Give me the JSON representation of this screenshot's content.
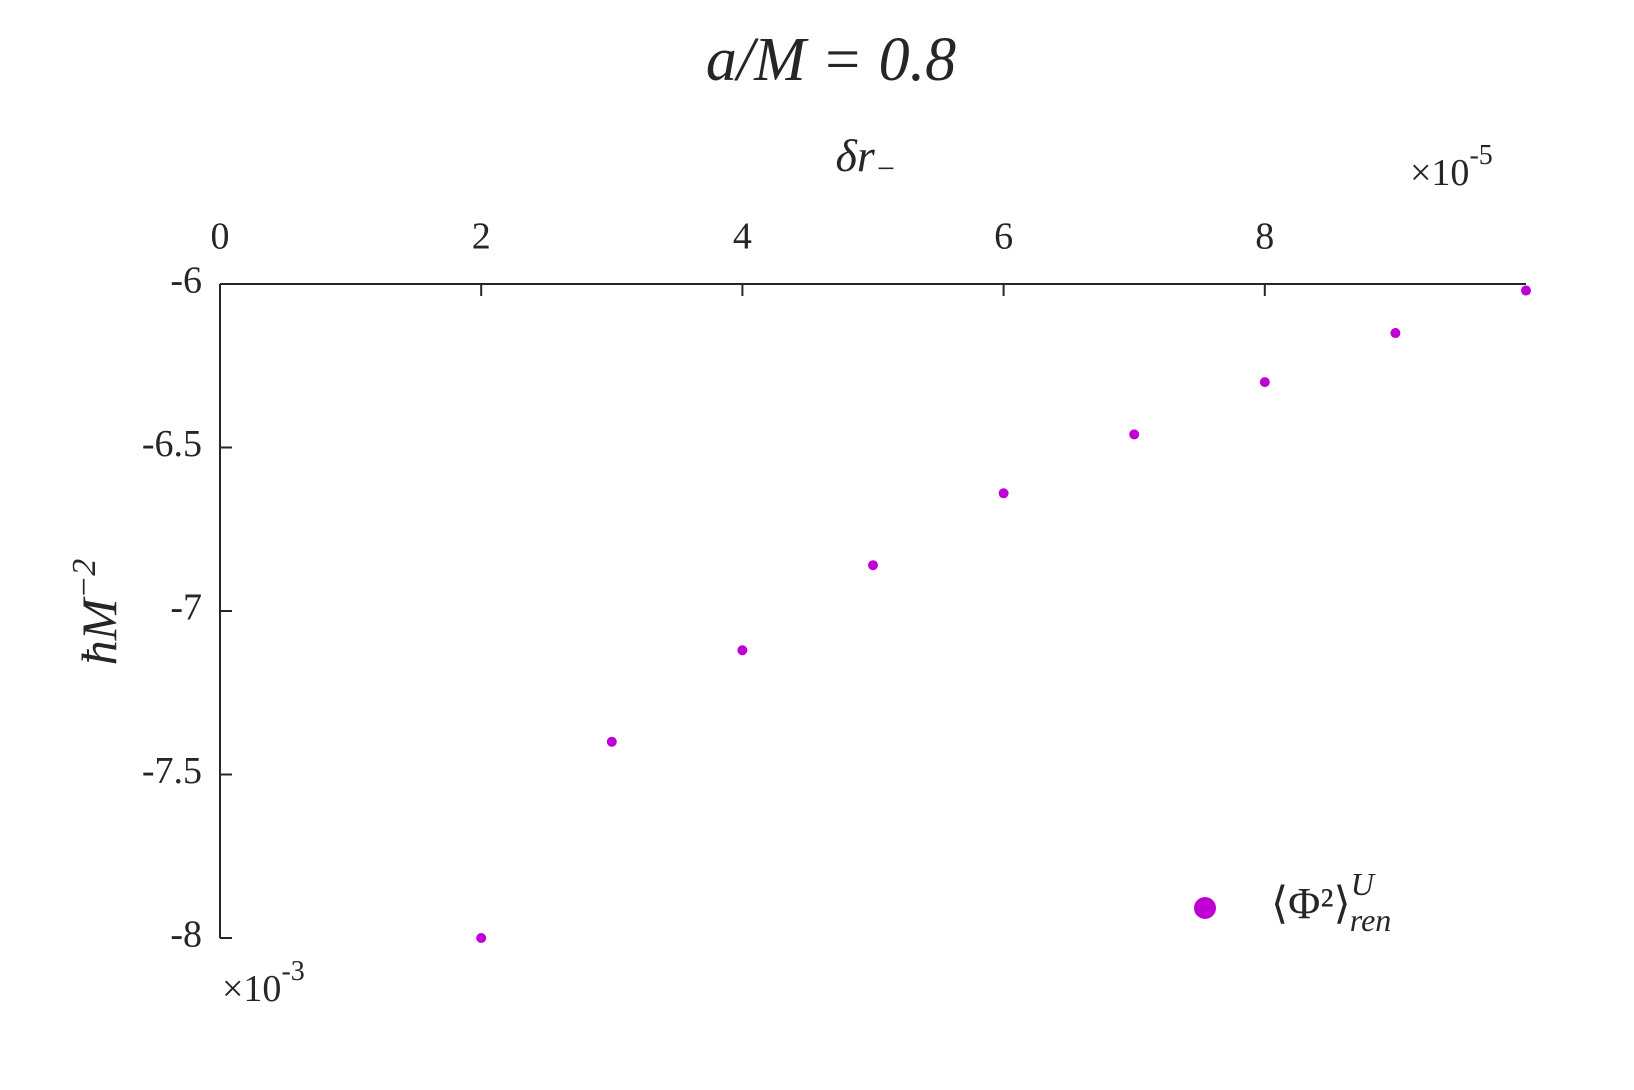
{
  "chart_data": {
    "type": "scatter",
    "title": "a/M = 0.8",
    "x_label": "δr",
    "x_label_subscript": "−",
    "y_label": "ħM",
    "y_label_superscript": "−2",
    "x_multiplier": {
      "base": "×10",
      "exponent": "-5"
    },
    "y_multiplier": {
      "base": "×10",
      "exponent": "-3"
    },
    "x_axis_position": "top",
    "xlim": [
      0,
      10
    ],
    "xticks": [
      0,
      2,
      4,
      6,
      8
    ],
    "ylim": [
      -8,
      -6
    ],
    "yticks": [
      -8,
      -7.5,
      -7,
      -6.5,
      -6
    ],
    "legend_position": "lower right",
    "series": [
      {
        "name": "⟨Φ²⟩",
        "name_superscript": "U",
        "name_subscript": "ren",
        "color": "#bf00d4",
        "x": [
          2,
          3,
          4,
          5,
          6,
          7,
          8,
          9,
          10
        ],
        "values": [
          -8.0,
          -7.4,
          -7.12,
          -6.86,
          -6.64,
          -6.46,
          -6.3,
          -6.15,
          -6.02
        ]
      }
    ]
  }
}
